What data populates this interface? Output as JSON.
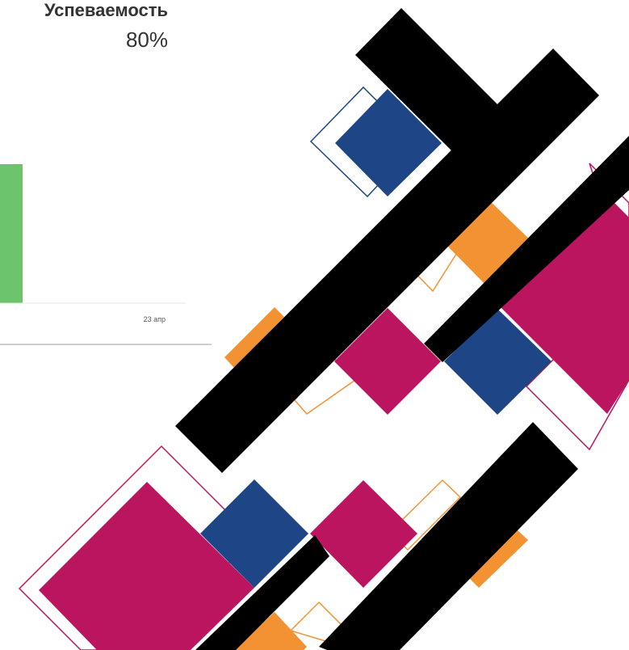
{
  "header": {
    "title": "Успеваемость",
    "value": "80%"
  },
  "chart": {
    "x_label": "23 апр"
  }
}
